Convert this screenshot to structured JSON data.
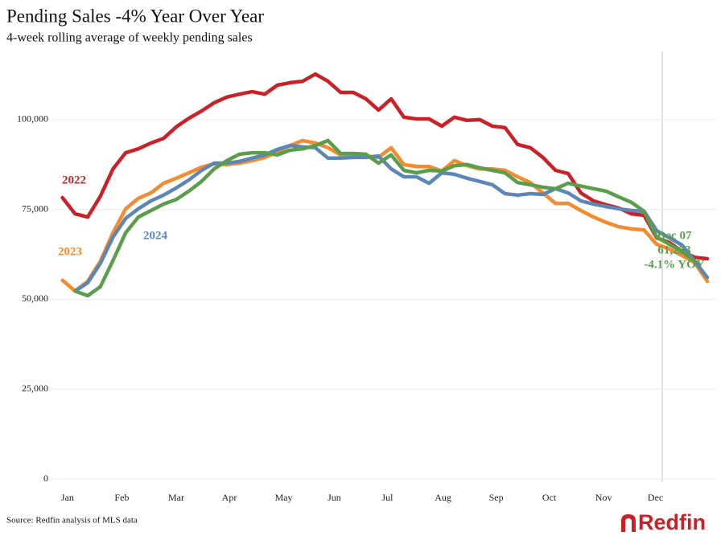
{
  "chart_data": {
    "type": "line",
    "title": "Pending Sales -4% Year Over Year",
    "subtitle": "4-week rolling average of weekly pending sales",
    "source": "Source: Redfin analysis of MLS data",
    "brand": "Redfin",
    "x": [
      0,
      1,
      2,
      3,
      4,
      5,
      6,
      7,
      8,
      9,
      10,
      11,
      12,
      13,
      14,
      15,
      16,
      17,
      18,
      19,
      20,
      21,
      22,
      23,
      24,
      25,
      26,
      27,
      28,
      29,
      30,
      31,
      32,
      33,
      34,
      35,
      36,
      37,
      38,
      39,
      40,
      41,
      42,
      43,
      44,
      45,
      46,
      47,
      48,
      49,
      50,
      51
    ],
    "xlim": [
      -0.8,
      51.7
    ],
    "xticks": [
      {
        "value": 0.4,
        "label": "Jan"
      },
      {
        "value": 4.7,
        "label": "Feb"
      },
      {
        "value": 9.0,
        "label": "Mar"
      },
      {
        "value": 13.2,
        "label": "Apr"
      },
      {
        "value": 17.5,
        "label": "May"
      },
      {
        "value": 21.5,
        "label": "Jun"
      },
      {
        "value": 25.7,
        "label": "Jul"
      },
      {
        "value": 30.1,
        "label": "Aug"
      },
      {
        "value": 34.3,
        "label": "Sep"
      },
      {
        "value": 38.5,
        "label": "Oct"
      },
      {
        "value": 42.8,
        "label": "Nov"
      },
      {
        "value": 46.9,
        "label": "Dec"
      }
    ],
    "ylim": [
      0,
      119000
    ],
    "yticks": [
      0,
      {
        "value": 25000,
        "label": "25,000"
      },
      {
        "value": 50000,
        "label": "50,000"
      },
      {
        "value": 75000,
        "label": "75,000"
      },
      {
        "value": 100000,
        "label": "100,000"
      }
    ],
    "grid": true,
    "series": [
      {
        "name": "2022",
        "color": "#cc2027",
        "values": [
          78300,
          73800,
          72900,
          78700,
          86300,
          90800,
          91900,
          93500,
          94800,
          98000,
          100400,
          102400,
          104700,
          106300,
          107100,
          107800,
          107100,
          109600,
          110300,
          110700,
          112700,
          110700,
          107600,
          107600,
          105800,
          102700,
          105800,
          100700,
          100200,
          100200,
          98200,
          100700,
          99800,
          100000,
          98200,
          97800,
          93100,
          92200,
          89500,
          85900,
          85000,
          79600,
          77400,
          76300,
          75400,
          73800,
          73400,
          67100,
          65800,
          63300,
          61700,
          61300
        ]
      },
      {
        "name": "2023",
        "color": "#f58a2e",
        "values": [
          55300,
          52300,
          55000,
          60600,
          68500,
          75200,
          78100,
          79600,
          82300,
          83700,
          85200,
          86800,
          87700,
          87500,
          87900,
          88600,
          89500,
          91000,
          92800,
          94200,
          93500,
          92200,
          90200,
          90400,
          89900,
          89500,
          92200,
          87500,
          87000,
          87000,
          85700,
          88600,
          87200,
          86300,
          86300,
          85900,
          84100,
          82500,
          79600,
          76700,
          76700,
          74700,
          72900,
          71400,
          70200,
          69600,
          69300,
          65300,
          64000,
          62200,
          60200,
          55000
        ]
      },
      {
        "name": "2024",
        "color": "#5b87b8",
        "values": [
          null,
          52300,
          54600,
          60000,
          67300,
          72500,
          75200,
          77400,
          79000,
          81000,
          83200,
          85900,
          87900,
          87900,
          88400,
          89300,
          90200,
          91700,
          92800,
          92400,
          92200,
          89300,
          89300,
          89500,
          89500,
          89900,
          86300,
          84100,
          84100,
          82300,
          85200,
          84800,
          83700,
          82800,
          81900,
          79400,
          79000,
          79400,
          79200,
          80800,
          79600,
          77400,
          76500,
          75800,
          75200,
          74700,
          74500,
          69100,
          67100,
          65100,
          60600,
          56100
        ]
      },
      {
        "color": "#5a9e4b",
        "values": [
          null,
          52300,
          51000,
          53500,
          60800,
          68500,
          72900,
          74700,
          76500,
          77800,
          80100,
          82800,
          86300,
          88600,
          90400,
          90800,
          90800,
          90200,
          91500,
          91900,
          92800,
          94200,
          90600,
          90600,
          90400,
          87900,
          90200,
          85900,
          85200,
          85900,
          85700,
          87200,
          87500,
          86600,
          85900,
          85200,
          82500,
          81900,
          81200,
          80800,
          82300,
          81500,
          80800,
          80100,
          78500,
          77000,
          74500,
          67300,
          65300,
          63300,
          60600,
          null
        ]
      }
    ],
    "annotations": [
      "Dec 07",
      "61,253",
      "-4.1% YOY"
    ]
  }
}
